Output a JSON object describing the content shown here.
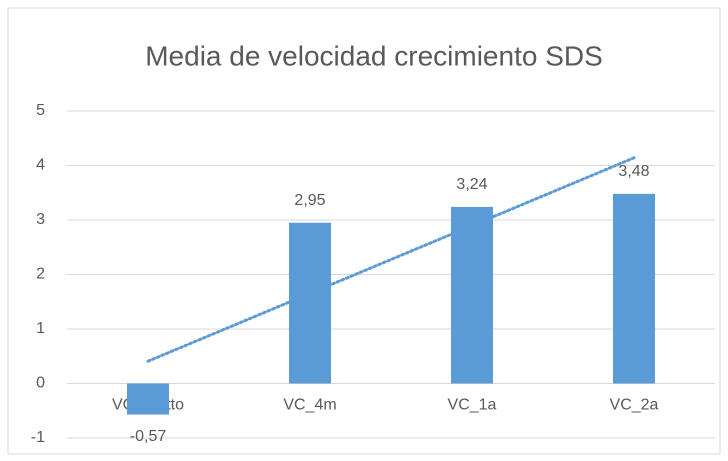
{
  "chart_data": {
    "type": "bar",
    "title": "Media de velocidad crecimiento SDS",
    "categories": [
      "VC_pretto",
      "VC_4m",
      "VC_1a",
      "VC_2a"
    ],
    "values": [
      -0.57,
      2.95,
      3.24,
      3.48
    ],
    "value_labels": [
      "-0,57",
      "2,95",
      "3,24",
      "3,48"
    ],
    "color": "#5b9bd5",
    "ylim": [
      -1,
      5
    ],
    "yticks": [
      -1,
      0,
      1,
      2,
      3,
      4,
      5
    ],
    "grid": true,
    "trendline": "linear"
  }
}
